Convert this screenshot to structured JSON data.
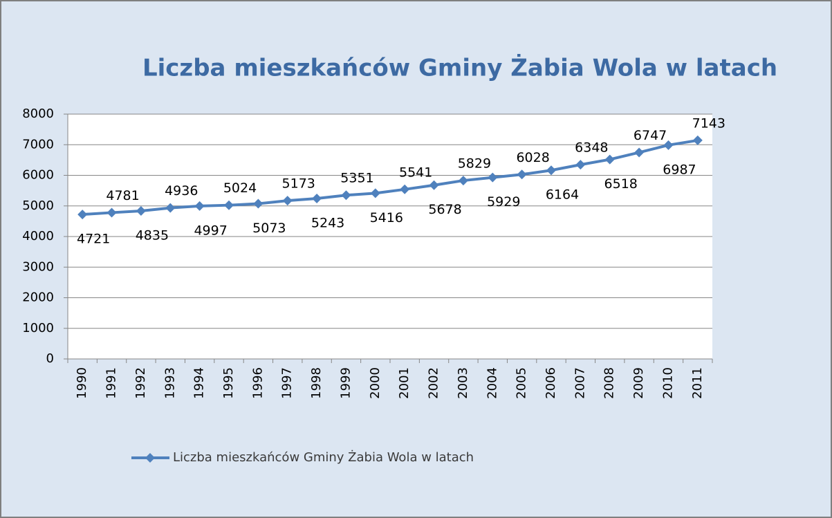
{
  "chart_data": {
    "type": "line",
    "title": "Liczba mieszkańców Gminy Żabia Wola w latach",
    "categories": [
      "1990",
      "1991",
      "1992",
      "1993",
      "1994",
      "1995",
      "1996",
      "1997",
      "1998",
      "1999",
      "2000",
      "2001",
      "2002",
      "2003",
      "2004",
      "2005",
      "2006",
      "2007",
      "2008",
      "2009",
      "2010",
      "2011"
    ],
    "series": [
      {
        "name": "Liczba mieszkańców Gminy Żabia Wola w latach",
        "color": "#4f81bd",
        "values": [
          4721,
          4781,
          4835,
          4936,
          4997,
          5024,
          5073,
          5173,
          5243,
          5351,
          5416,
          5541,
          5678,
          5829,
          5929,
          6028,
          6164,
          6348,
          6518,
          6747,
          6987,
          7143
        ]
      }
    ],
    "ylim": [
      0,
      8000
    ],
    "yticks": [
      0,
      1000,
      2000,
      3000,
      4000,
      5000,
      6000,
      7000,
      8000
    ],
    "grid": true,
    "legend": "bottom"
  }
}
